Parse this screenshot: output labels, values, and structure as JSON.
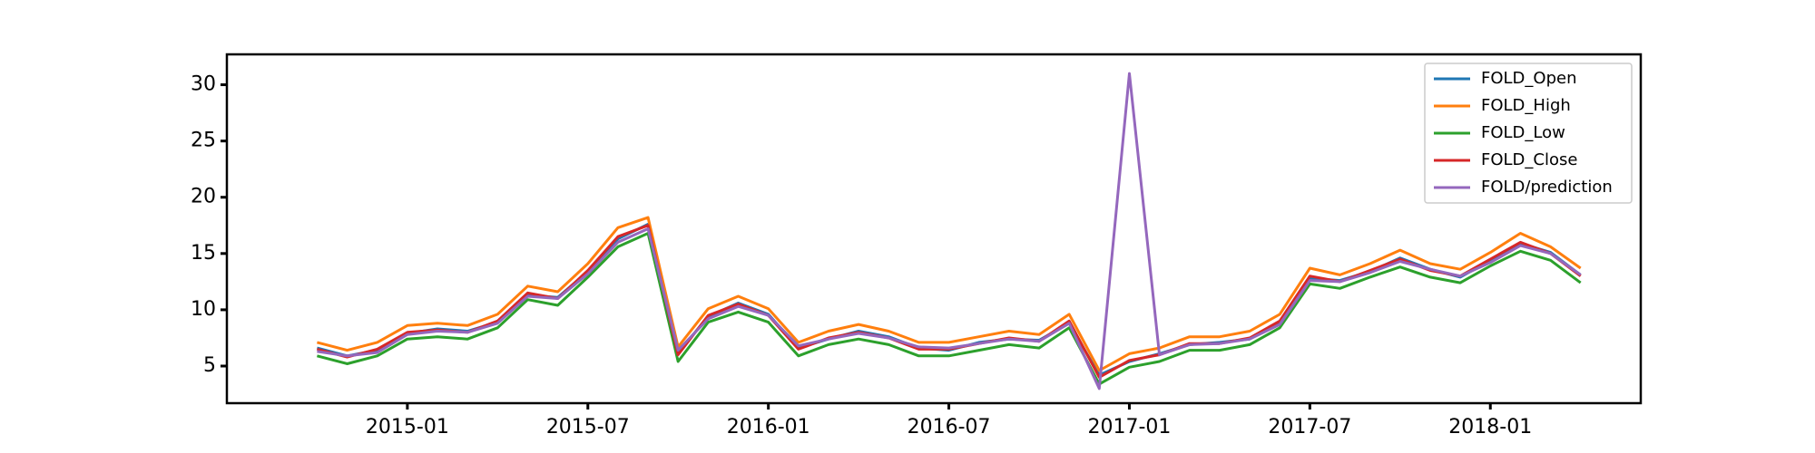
{
  "chart_data": {
    "type": "line",
    "x": [
      "2014-10",
      "2014-11",
      "2014-12",
      "2015-01",
      "2015-02",
      "2015-03",
      "2015-04",
      "2015-05",
      "2015-06",
      "2015-07",
      "2015-08",
      "2015-09",
      "2015-10",
      "2015-11",
      "2015-12",
      "2016-01",
      "2016-02",
      "2016-03",
      "2016-04",
      "2016-05",
      "2016-06",
      "2016-07",
      "2016-08",
      "2016-09",
      "2016-10",
      "2016-11",
      "2016-12",
      "2017-01",
      "2017-02",
      "2017-03",
      "2017-04",
      "2017-05",
      "2017-06",
      "2017-07",
      "2017-08",
      "2017-09",
      "2017-10",
      "2017-11",
      "2017-12",
      "2018-01",
      "2018-02",
      "2018-03",
      "2018-04"
    ],
    "series": [
      {
        "name": "FOLD_Open",
        "color": "#1f77b4",
        "values": [
          6.6,
          5.9,
          6.4,
          7.9,
          8.3,
          8.1,
          8.9,
          11.3,
          11.1,
          13.4,
          16.3,
          17.6,
          6.2,
          9.4,
          10.6,
          9.6,
          6.6,
          7.4,
          8.1,
          7.6,
          6.6,
          6.4,
          7.1,
          7.4,
          7.3,
          8.8,
          4.2,
          5.4,
          6.1,
          6.9,
          7.1,
          7.4,
          8.8,
          12.8,
          12.6,
          13.4,
          14.6,
          13.6,
          12.9,
          14.4,
          15.9,
          15.1,
          13.1
        ]
      },
      {
        "name": "FOLD_High",
        "color": "#ff7f0e",
        "values": [
          7.1,
          6.4,
          7.1,
          8.6,
          8.8,
          8.6,
          9.6,
          12.1,
          11.6,
          14.1,
          17.3,
          18.2,
          6.7,
          10.1,
          11.2,
          10.1,
          7.1,
          8.1,
          8.7,
          8.1,
          7.1,
          7.1,
          7.6,
          8.1,
          7.8,
          9.6,
          4.6,
          6.1,
          6.6,
          7.6,
          7.6,
          8.1,
          9.6,
          13.7,
          13.1,
          14.1,
          15.3,
          14.1,
          13.6,
          15.1,
          16.8,
          15.6,
          13.7
        ]
      },
      {
        "name": "FOLD_Low",
        "color": "#2ca02c",
        "values": [
          5.9,
          5.2,
          5.9,
          7.4,
          7.6,
          7.4,
          8.4,
          10.9,
          10.4,
          12.9,
          15.6,
          16.8,
          5.4,
          8.9,
          9.8,
          8.9,
          5.9,
          6.9,
          7.4,
          6.9,
          5.9,
          5.9,
          6.4,
          6.9,
          6.6,
          8.4,
          3.4,
          4.9,
          5.4,
          6.4,
          6.4,
          6.9,
          8.4,
          12.3,
          11.9,
          12.9,
          13.8,
          12.9,
          12.4,
          13.9,
          15.2,
          14.4,
          12.4
        ]
      },
      {
        "name": "FOLD_Close",
        "color": "#d62728",
        "values": [
          6.5,
          5.8,
          6.5,
          8.0,
          8.2,
          8.0,
          9.0,
          11.5,
          11.0,
          13.5,
          16.5,
          17.5,
          6.0,
          9.5,
          10.5,
          9.5,
          6.5,
          7.5,
          8.0,
          7.5,
          6.5,
          6.5,
          7.0,
          7.5,
          7.2,
          9.0,
          4.0,
          5.5,
          6.0,
          7.0,
          7.0,
          7.5,
          9.0,
          13.0,
          12.5,
          13.5,
          14.5,
          13.5,
          13.0,
          14.5,
          16.0,
          15.0,
          13.0
        ]
      },
      {
        "name": "FOLD/prediction",
        "color": "#9467bd",
        "values": [
          6.3,
          5.9,
          6.2,
          7.8,
          8.1,
          8.0,
          8.8,
          11.2,
          11.0,
          13.2,
          16.0,
          17.2,
          6.4,
          9.2,
          10.3,
          9.5,
          6.8,
          7.4,
          7.9,
          7.5,
          6.7,
          6.6,
          7.0,
          7.4,
          7.2,
          8.8,
          3.0,
          31.0,
          6.0,
          6.9,
          7.0,
          7.4,
          8.7,
          12.6,
          12.5,
          13.3,
          14.3,
          13.6,
          13.0,
          14.2,
          15.7,
          15.0,
          13.1
        ]
      }
    ],
    "xlim": [
      "2014-07",
      "2018-06"
    ],
    "xticks": [
      "2015-01",
      "2015-07",
      "2016-01",
      "2016-07",
      "2017-01",
      "2017-07",
      "2018-01"
    ],
    "ylim": [
      1.7,
      32.7
    ],
    "yticks": [
      5,
      10,
      15,
      20,
      25,
      30
    ],
    "legend": "upper right"
  }
}
